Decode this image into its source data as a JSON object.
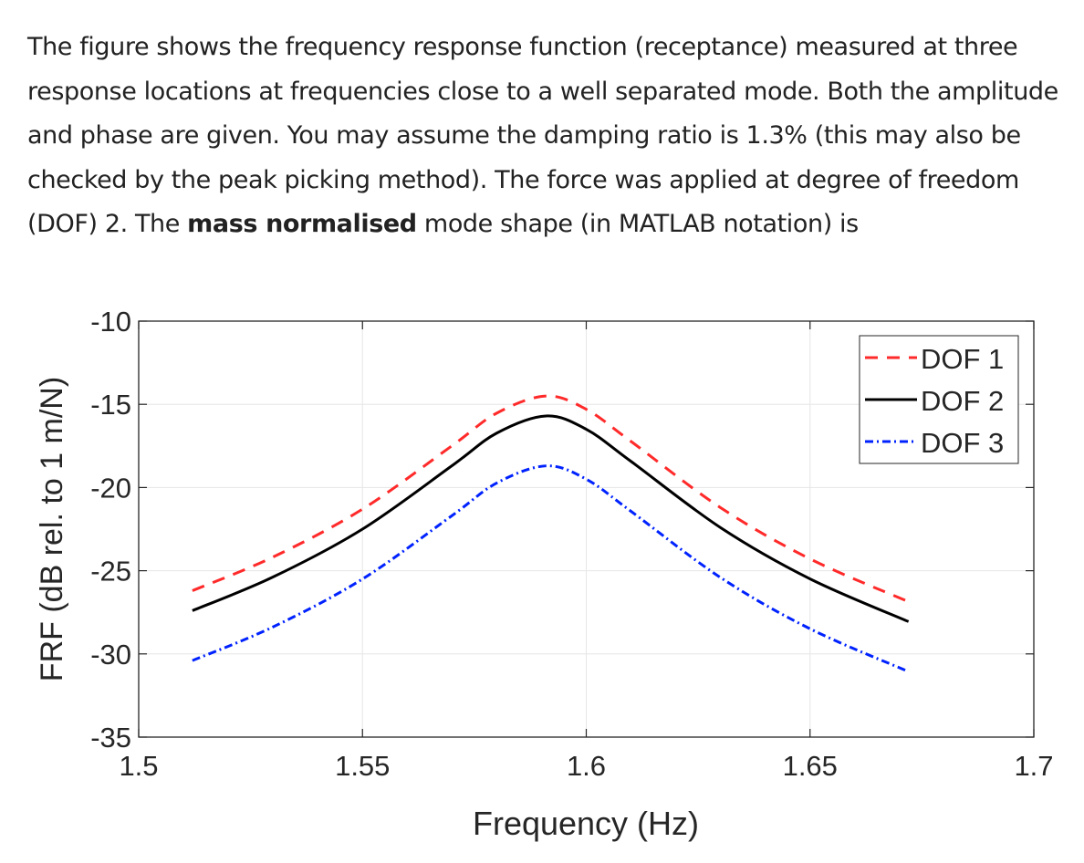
{
  "question": {
    "text_before_bold": "The figure shows the frequency response function (receptance) measured at three response locations at frequencies close to a well separated mode. Both the amplitude and phase are given. You may assume the damping ratio is 1.3% (this may also be checked by the peak picking method).  The force was applied at degree of freedom (DOF) 2. The ",
    "bold_text": "mass normalised",
    "text_after_bold": " mode shape (in MATLAB notation) is"
  },
  "chart_data": {
    "type": "line",
    "title": "",
    "xlabel": "Frequency (Hz)",
    "ylabel": "FRF (dB rel. to 1 m/N)",
    "xlim": [
      1.5,
      1.7
    ],
    "ylim": [
      -35,
      -10
    ],
    "xticks": [
      1.5,
      1.55,
      1.6,
      1.65,
      1.7
    ],
    "xtick_labels": [
      "1.5",
      "1.55",
      "1.6",
      "1.65",
      "1.7"
    ],
    "yticks": [
      -35,
      -30,
      -25,
      -20,
      -15,
      -10
    ],
    "ytick_labels": [
      "-35",
      "-30",
      "-25",
      "-20",
      "-15",
      "-10"
    ],
    "grid": true,
    "legend_position": "top-right",
    "x": [
      1.512,
      1.53,
      1.55,
      1.57,
      1.58,
      1.591,
      1.6,
      1.61,
      1.63,
      1.65,
      1.672
    ],
    "series": [
      {
        "name": "DOF 1",
        "color": "#ff2a2a",
        "style": "dashed",
        "values": [
          -26.2,
          -24.18,
          -21.3,
          -17.49,
          -15.53,
          -14.5,
          -15.3,
          -17.23,
          -21.21,
          -24.29,
          -26.86
        ]
      },
      {
        "name": "DOF 2",
        "color": "#000000",
        "style": "solid",
        "values": [
          -27.4,
          -25.38,
          -22.5,
          -18.69,
          -16.73,
          -15.7,
          -16.5,
          -18.43,
          -22.41,
          -25.49,
          -28.06
        ]
      },
      {
        "name": "DOF 3",
        "color": "#0022ff",
        "style": "dashdot",
        "values": [
          -30.4,
          -28.38,
          -25.5,
          -21.69,
          -19.73,
          -18.7,
          -19.5,
          -21.43,
          -25.41,
          -28.49,
          -31.06
        ]
      }
    ]
  }
}
